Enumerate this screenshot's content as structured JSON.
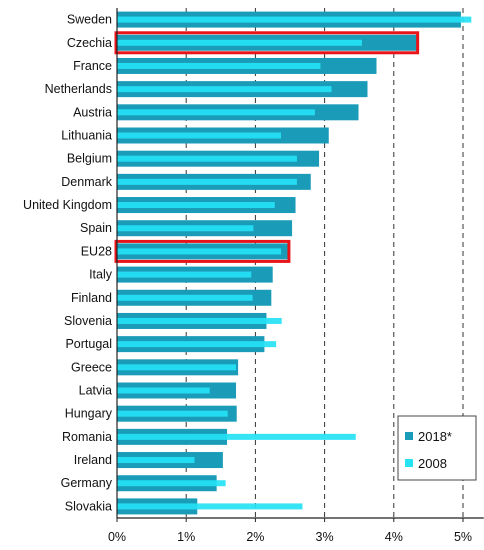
{
  "chart_data": {
    "type": "bar",
    "orientation": "horizontal",
    "categories": [
      "Sweden",
      "Czechia",
      "France",
      "Netherlands",
      "Austria",
      "Lithuania",
      "Belgium",
      "Denmark",
      "United Kingdom",
      "Spain",
      "EU28",
      "Italy",
      "Finland",
      "Slovenia",
      "Portugal",
      "Greece",
      "Latvia",
      "Hungary",
      "Romania",
      "Ireland",
      "Germany",
      "Slovakia"
    ],
    "series": [
      {
        "name": "2018*",
        "color": "#1a9bb8",
        "values": [
          4.97,
          4.33,
          3.75,
          3.62,
          3.49,
          3.06,
          2.92,
          2.8,
          2.58,
          2.53,
          2.47,
          2.25,
          2.23,
          2.16,
          2.13,
          1.75,
          1.72,
          1.73,
          1.59,
          1.53,
          1.44,
          1.16
        ]
      },
      {
        "name": "2008",
        "color": "#25e2f5",
        "values": [
          5.12,
          3.54,
          2.94,
          3.1,
          2.86,
          2.37,
          2.6,
          2.6,
          2.28,
          1.97,
          2.37,
          1.94,
          1.96,
          2.38,
          2.3,
          1.72,
          1.34,
          1.6,
          3.45,
          1.12,
          1.57,
          2.68
        ]
      }
    ],
    "xlabel": "",
    "ylabel": "",
    "xlim": [
      0,
      5.3
    ],
    "x_ticks": [
      "0%",
      "1%",
      "2%",
      "3%",
      "4%",
      "5%"
    ],
    "grid": "vertical dashed",
    "highlighted": [
      "Czechia",
      "EU28"
    ],
    "highlight_color": "#e8141a",
    "legend_position": "bottom-right"
  }
}
